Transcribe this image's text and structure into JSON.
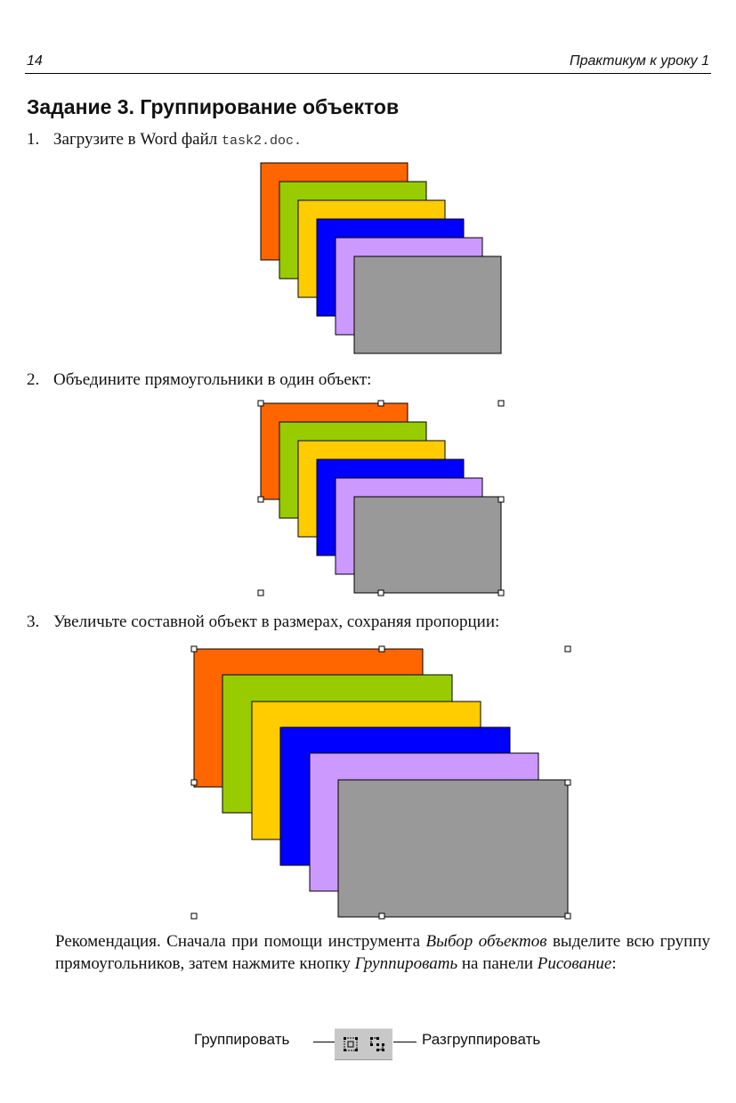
{
  "header": {
    "page_number": "14",
    "section": "Практикум к уроку 1"
  },
  "task": {
    "title": "Задание 3. Группирование объектов"
  },
  "steps": [
    {
      "num": "1.",
      "text": "Загрузите в Word файл ",
      "file": "task2.doc."
    },
    {
      "num": "2.",
      "text": "Объедините прямоугольники в один объект:"
    },
    {
      "num": "3.",
      "text": "Увеличьте составной объект в размерах, сохраняя пропорции:"
    }
  ],
  "recommendation": {
    "part1": "Рекомендация. Сначала при помощи инструмента ",
    "tool": "Выбор объектов",
    "part2": " выделите всю группу прямоугольников, затем нажмите кнопку ",
    "button": "Группировать",
    "part3": " на панели ",
    "panel": "Рисование",
    "part4": ":"
  },
  "toolbar": {
    "group_label": "Группировать",
    "ungroup_label": "Разгруппировать"
  },
  "colors": {
    "orange": "#ff6600",
    "green": "#99cc00",
    "yellow": "#ffcc00",
    "blue": "#0000ff",
    "lavender": "#cc99ff",
    "gray": "#999999"
  }
}
